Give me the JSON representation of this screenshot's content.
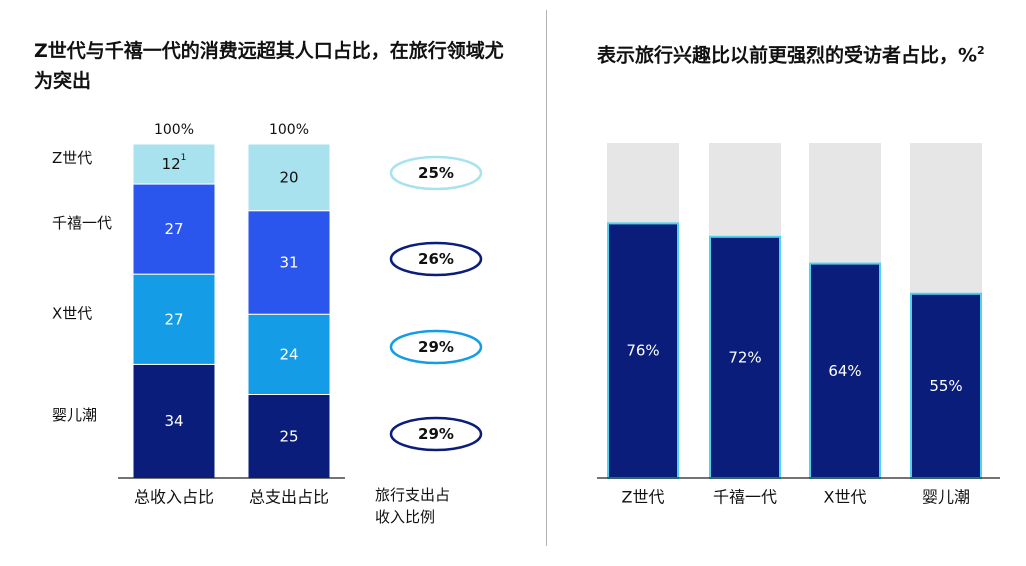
{
  "left_panel": {
    "title": "Z世代与千禧一代的消费远超其人口占比，在旅行领域尤为突出"
  },
  "right_panel": {
    "title": "表示旅行兴趣比以前更强烈的受访者占比，%",
    "title_sup": "2"
  },
  "colors": {
    "gen_z": "#a8e2ee",
    "millennials": "#2b56ee",
    "gen_x": "#149ce6",
    "boomers": "#0a1d7a",
    "ring": "#0a1d7a",
    "bar_bg": "#e6e6e6",
    "bar_fill": "#0a1d7a",
    "bar_edge": "#4fd2f0"
  },
  "chart_data": [
    {
      "type": "bar",
      "stacked": true,
      "title": "Z世代与千禧一代的消费远超其人口占比，在旅行领域尤为突出",
      "categories": [
        "总收入占比",
        "总支出占比"
      ],
      "totals": [
        "100%",
        "100%"
      ],
      "series": [
        {
          "name": "Z世代",
          "values": [
            12,
            20
          ],
          "labels": [
            "12",
            "20"
          ],
          "label_sup": [
            "1",
            ""
          ]
        },
        {
          "name": "千禧一代",
          "values": [
            27,
            31
          ],
          "labels": [
            "27",
            "31"
          ],
          "label_sup": [
            "",
            ""
          ]
        },
        {
          "name": "X世代",
          "values": [
            27,
            24
          ],
          "labels": [
            "27",
            "24"
          ],
          "label_sup": [
            "",
            ""
          ]
        },
        {
          "name": "婴儿潮",
          "values": [
            34,
            25
          ],
          "labels": [
            "34",
            "25"
          ],
          "label_sup": [
            "",
            ""
          ]
        }
      ],
      "ylim": [
        0,
        100
      ]
    },
    {
      "type": "table",
      "column_label": "旅行支出占收入比例",
      "rows": [
        "Z世代",
        "千禧一代",
        "X世代",
        "婴儿潮"
      ],
      "values": [
        25,
        26,
        29,
        29
      ],
      "labels": [
        "25%",
        "26%",
        "29%",
        "29%"
      ],
      "ring_colors": [
        "#a8e2ee",
        "#0a1d7a",
        "#149ce6",
        "#0a1d7a"
      ]
    },
    {
      "type": "bar",
      "title": "表示旅行兴趣比以前更强烈的受访者占比，%",
      "categories": [
        "Z世代",
        "千禧一代",
        "X世代",
        "婴儿潮"
      ],
      "values": [
        76,
        72,
        64,
        55
      ],
      "labels": [
        "76%",
        "72%",
        "64%",
        "55%"
      ],
      "ylim": [
        0,
        100
      ]
    }
  ]
}
